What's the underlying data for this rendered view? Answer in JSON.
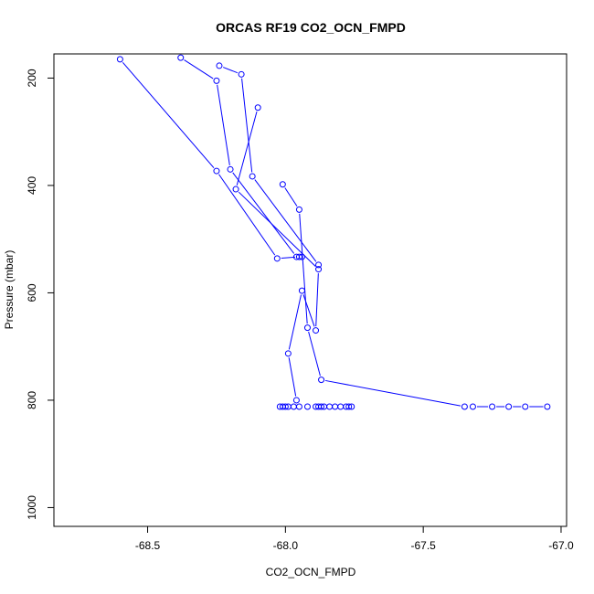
{
  "chart_data": {
    "type": "scatter",
    "title": "ORCAS RF19 CO2_OCN_FMPD",
    "xlabel": "CO2_OCN_FMPD",
    "ylabel": "Pressure (mbar)",
    "xlim": [
      -68.84,
      -66.98
    ],
    "ylim": [
      1035,
      155
    ],
    "y_reversed": true,
    "xticks": [
      -68.5,
      -68.0,
      -67.5,
      -67.0
    ],
    "xtick_labels": [
      "-68.5",
      "-68.0",
      "-67.5",
      "-67.0"
    ],
    "yticks": [
      200,
      400,
      600,
      800,
      1000
    ],
    "ytick_labels": [
      "200",
      "400",
      "600",
      "800",
      "1000"
    ],
    "grid": false,
    "legend": null,
    "point_style": "open-circle",
    "color": "#0000ff",
    "segments": [
      {
        "x": [
          -68.6,
          -68.25,
          -68.03,
          -67.95
        ],
        "y": [
          165,
          373,
          536,
          533
        ]
      },
      {
        "x": [
          -68.38,
          -68.25,
          -68.2,
          -67.96,
          -67.94
        ],
        "y": [
          162,
          205,
          370,
          533,
          533
        ]
      },
      {
        "x": [
          -68.24,
          -68.16,
          -68.12,
          -67.88
        ],
        "y": [
          177,
          193,
          383,
          548
        ]
      },
      {
        "x": [
          -68.1,
          -68.18,
          -67.88,
          -67.89,
          -67.94,
          -67.99,
          -67.96
        ],
        "y": [
          255,
          407,
          556,
          670,
          596,
          713,
          800
        ]
      },
      {
        "x": [
          -68.01,
          -67.95,
          -67.92,
          -67.87,
          -67.35,
          -67.32,
          -67.25,
          -67.19,
          -67.13,
          -67.05
        ],
        "y": [
          398,
          445,
          665,
          762,
          812,
          812,
          812,
          812,
          812,
          812
        ]
      }
    ],
    "surface_points": {
      "x": [
        -68.02,
        -68.01,
        -68.0,
        -67.99,
        -67.97,
        -67.95,
        -67.92,
        -67.89,
        -67.88,
        -67.87,
        -67.86,
        -67.84,
        -67.82,
        -67.8,
        -67.78,
        -67.77,
        -67.76
      ],
      "y": [
        812,
        812,
        812,
        812,
        812,
        812,
        812,
        812,
        812,
        812,
        812,
        812,
        812,
        812,
        812,
        812,
        812
      ]
    }
  }
}
